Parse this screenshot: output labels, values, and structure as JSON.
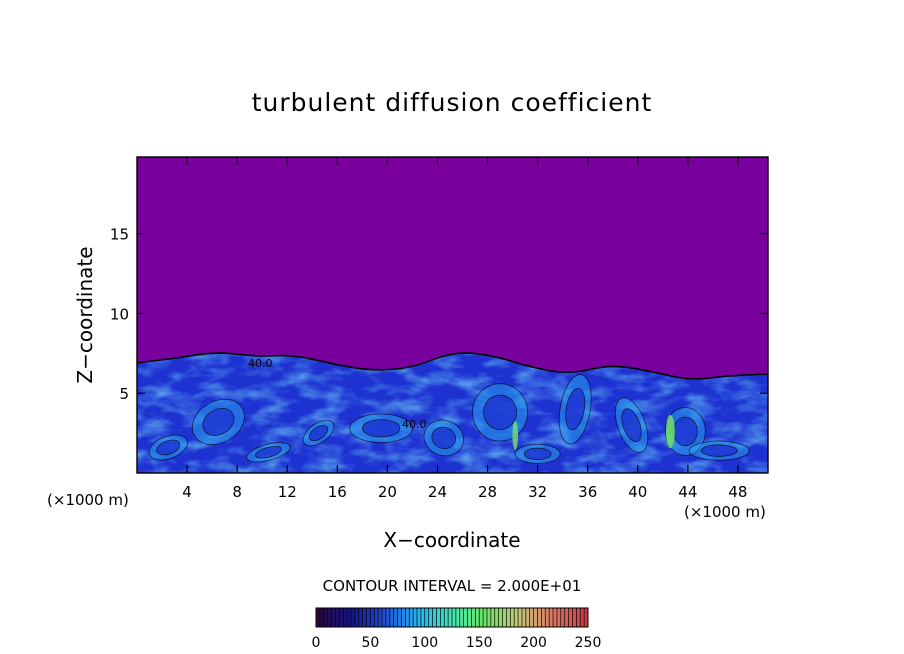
{
  "chart_data": {
    "type": "heatmap",
    "title": "turbulent diffusion coefficient",
    "xlabel": "X−coordinate",
    "ylabel": "Z−coordinate",
    "x_unit_left": "(×1000 m)",
    "x_unit_right": "(×1000 m)",
    "xlim": [
      0,
      50.4
    ],
    "ylim": [
      0,
      19.8
    ],
    "xticks": [
      4,
      8,
      12,
      16,
      20,
      24,
      28,
      32,
      36,
      40,
      44,
      48
    ],
    "yticks": [
      5,
      10,
      15
    ],
    "contour_interval_text": "CONTOUR INTERVAL = 2.000E+01",
    "contour_line_labels": [
      "40.0",
      "40.0"
    ],
    "colorbar": {
      "ticks": [
        0,
        50,
        100,
        150,
        200,
        250
      ],
      "range": [
        0,
        250
      ],
      "colors": [
        "#2a0a3a",
        "#14148c",
        "#1e50dc",
        "#28b4f0",
        "#46e6b4",
        "#6ee664",
        "#c8c878",
        "#dc7864",
        "#c83c46"
      ]
    },
    "colors": {
      "background_value": "#7a009e",
      "low": "#1e32d2",
      "mid": "#28a0f0",
      "high": "#50e6aa",
      "peak": "#78e65a"
    },
    "turbulent_layer_top_km": [
      6.9,
      7.2,
      7.6,
      7.3,
      7.4,
      6.8,
      6.4,
      6.6,
      7.6,
      7.4,
      6.6,
      6.2,
      6.8,
      6.4,
      5.8,
      6.1,
      6.2
    ]
  }
}
